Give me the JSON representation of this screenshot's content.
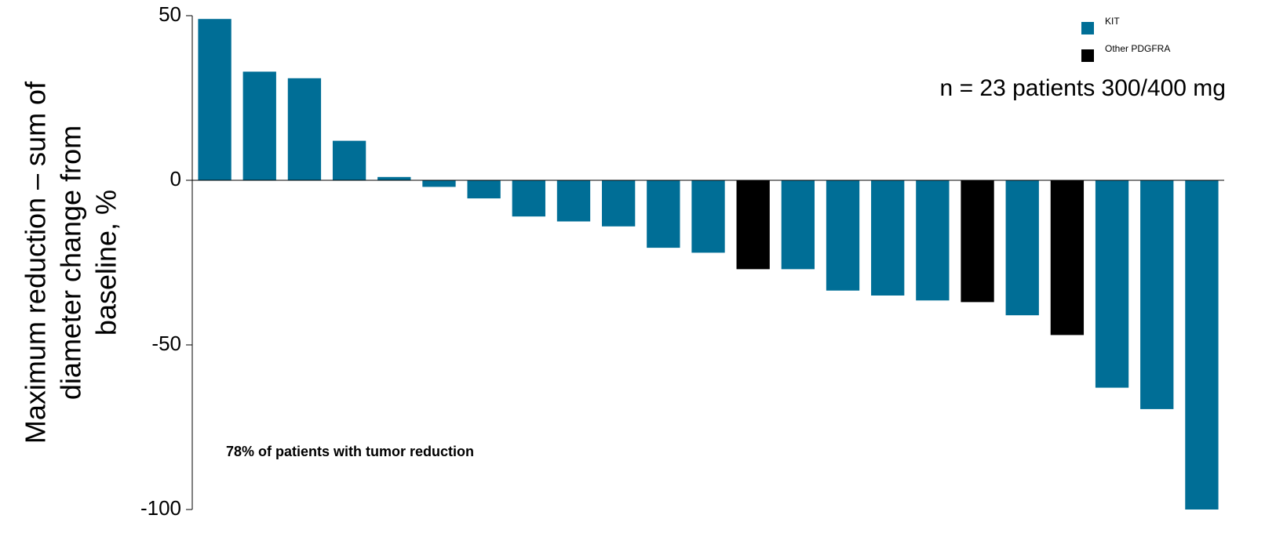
{
  "chart_data": {
    "type": "bar",
    "y_label": [
      "Maximum reduction – sum of",
      "diameter change from",
      "baseline, %"
    ],
    "annotations": [
      "n = 23 patients 300/400 mg",
      "78% of patients with tumor reduction"
    ],
    "categories": [
      null,
      null,
      null,
      null,
      null,
      null,
      null,
      null,
      null,
      null,
      null,
      null,
      null,
      null,
      null,
      null,
      null,
      null,
      null,
      null,
      null,
      null,
      null
    ],
    "series": [
      {
        "name": "KIT",
        "color": "#006e96",
        "values": [
          49,
          33,
          31,
          12,
          1,
          -2,
          -5.5,
          -11,
          -12.5,
          -14,
          -20.5,
          -22,
          null,
          -27,
          -33.5,
          -35,
          -36.5,
          null,
          -41,
          null,
          -63,
          -69.5,
          -100
        ]
      },
      {
        "name": "Other PDGFRA",
        "color": "#000000",
        "values": [
          null,
          null,
          null,
          null,
          null,
          null,
          null,
          null,
          null,
          null,
          null,
          null,
          -27,
          null,
          null,
          null,
          null,
          -37,
          null,
          -47,
          null,
          null,
          null
        ]
      }
    ],
    "ylim": [
      -100,
      50
    ],
    "yticks": [
      -100,
      -50,
      0,
      50
    ],
    "grid": false,
    "legend": "upper right"
  }
}
